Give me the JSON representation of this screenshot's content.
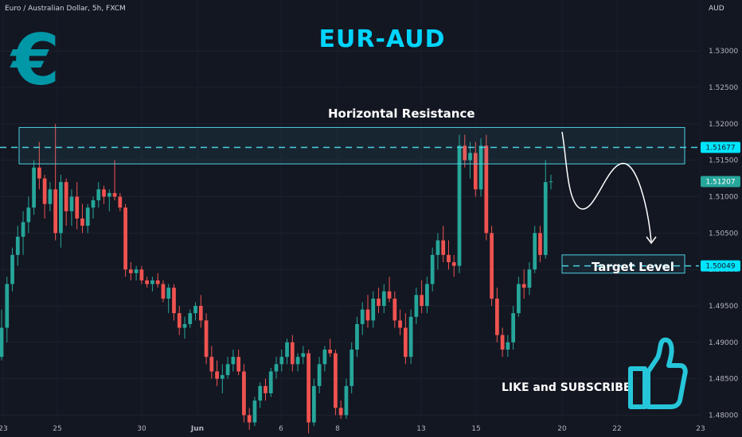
{
  "header": {
    "symbol_line": "Euro / Australian Dollar, 5h, FXCM",
    "currency": "AUD"
  },
  "annotations": {
    "title": "EUR-AUD",
    "euro_symbol": "€",
    "resistance_label": "Horizontal Resistance",
    "target_label": "Target Level",
    "cta": "LIKE and SUBSCRIBE"
  },
  "icons": {
    "currency_logo": "euro-icon",
    "like": "thumbs-up-icon"
  },
  "colors": {
    "background": "#131722",
    "up": "#26a69a",
    "down": "#ef5350",
    "zone": "#4dd0e1",
    "accent": "#00d4ff",
    "current_price": "#26a69a"
  },
  "chart_data": {
    "type": "candlestick",
    "y_axis_side": "right",
    "ylim": [
      1.477,
      1.537
    ],
    "y_ticks": [
      "1.53000",
      "1.52500",
      "1.52000",
      "1.51500",
      "1.51000",
      "1.50500",
      "1.50000",
      "1.49500",
      "1.49000",
      "1.48500",
      "1.48000"
    ],
    "x_ticks": [
      "23",
      "25",
      "30",
      "Jun",
      "6",
      "8",
      "13",
      "15",
      "20",
      "22",
      "23"
    ],
    "price_labels": [
      {
        "text": "1.51677",
        "value": 1.51677,
        "kind": "resistance"
      },
      {
        "text": "1.51207",
        "value": 1.51207,
        "kind": "current"
      },
      {
        "text": "1.50049",
        "value": 1.50049,
        "kind": "target"
      }
    ],
    "zones": [
      {
        "name": "resistance",
        "top": 1.5195,
        "bottom": 1.5145,
        "level": 1.51677
      },
      {
        "name": "target",
        "top": 1.502,
        "bottom": 1.4995,
        "level": 1.50049
      }
    ],
    "projection": "curved path from resistance down to target level",
    "candles": [
      [
        1.488,
        1.4945,
        1.4875,
        1.492
      ],
      [
        1.492,
        1.499,
        1.49,
        1.498
      ],
      [
        1.498,
        1.503,
        1.497,
        1.502
      ],
      [
        1.502,
        1.506,
        1.5005,
        1.5045
      ],
      [
        1.5045,
        1.508,
        1.502,
        1.5065
      ],
      [
        1.5065,
        1.51,
        1.505,
        1.5085
      ],
      [
        1.5085,
        1.515,
        1.5075,
        1.514
      ],
      [
        1.514,
        1.5175,
        1.511,
        1.5125
      ],
      [
        1.5125,
        1.513,
        1.507,
        1.509
      ],
      [
        1.509,
        1.512,
        1.508,
        1.511
      ],
      [
        1.511,
        1.52,
        1.504,
        1.505
      ],
      [
        1.505,
        1.513,
        1.503,
        1.512
      ],
      [
        1.512,
        1.5125,
        1.506,
        1.508
      ],
      [
        1.508,
        1.511,
        1.506,
        1.51
      ],
      [
        1.51,
        1.512,
        1.5055,
        1.507
      ],
      [
        1.507,
        1.509,
        1.505,
        1.506
      ],
      [
        1.506,
        1.509,
        1.505,
        1.5085
      ],
      [
        1.5085,
        1.51,
        1.507,
        1.5095
      ],
      [
        1.5095,
        1.512,
        1.5085,
        1.511
      ],
      [
        1.511,
        1.5115,
        1.509,
        1.51
      ],
      [
        1.51,
        1.511,
        1.508,
        1.5105
      ],
      [
        1.5105,
        1.515,
        1.5095,
        1.51
      ],
      [
        1.51,
        1.5105,
        1.508,
        1.5085
      ],
      [
        1.5085,
        1.509,
        1.499,
        1.5
      ],
      [
        1.5,
        1.501,
        1.4985,
        1.4995
      ],
      [
        1.4995,
        1.5005,
        1.4985,
        1.5
      ],
      [
        1.5,
        1.5005,
        1.498,
        1.4985
      ],
      [
        1.4985,
        1.499,
        1.4975,
        1.498
      ],
      [
        1.498,
        1.499,
        1.497,
        1.4985
      ],
      [
        1.4985,
        1.4995,
        1.4975,
        1.498
      ],
      [
        1.498,
        1.4985,
        1.4955,
        1.496
      ],
      [
        1.496,
        1.498,
        1.494,
        1.4975
      ],
      [
        1.4975,
        1.498,
        1.493,
        1.494
      ],
      [
        1.494,
        1.495,
        1.491,
        1.492
      ],
      [
        1.492,
        1.4935,
        1.4905,
        1.4925
      ],
      [
        1.4925,
        1.4945,
        1.492,
        1.494
      ],
      [
        1.494,
        1.4955,
        1.493,
        1.495
      ],
      [
        1.495,
        1.4965,
        1.492,
        1.493
      ],
      [
        1.493,
        1.494,
        1.487,
        1.488
      ],
      [
        1.488,
        1.4895,
        1.485,
        1.486
      ],
      [
        1.486,
        1.4875,
        1.484,
        1.485
      ],
      [
        1.485,
        1.487,
        1.483,
        1.4855
      ],
      [
        1.4855,
        1.488,
        1.485,
        1.487
      ],
      [
        1.487,
        1.489,
        1.486,
        1.488
      ],
      [
        1.488,
        1.489,
        1.4855,
        1.486
      ],
      [
        1.486,
        1.487,
        1.479,
        1.48
      ],
      [
        1.48,
        1.481,
        1.478,
        1.479
      ],
      [
        1.479,
        1.4825,
        1.4785,
        1.482
      ],
      [
        1.482,
        1.4845,
        1.481,
        1.484
      ],
      [
        1.484,
        1.485,
        1.482,
        1.483
      ],
      [
        1.483,
        1.4865,
        1.4825,
        1.486
      ],
      [
        1.486,
        1.488,
        1.485,
        1.487
      ],
      [
        1.487,
        1.489,
        1.486,
        1.488
      ],
      [
        1.488,
        1.4905,
        1.487,
        1.49
      ],
      [
        1.49,
        1.491,
        1.486,
        1.487
      ],
      [
        1.487,
        1.4885,
        1.486,
        1.488
      ],
      [
        1.488,
        1.4895,
        1.487,
        1.4885
      ],
      [
        1.4885,
        1.489,
        1.4775,
        1.479
      ],
      [
        1.479,
        1.485,
        1.4785,
        1.484
      ],
      [
        1.484,
        1.488,
        1.483,
        1.487
      ],
      [
        1.487,
        1.4895,
        1.486,
        1.489
      ],
      [
        1.489,
        1.4905,
        1.488,
        1.4885
      ],
      [
        1.4885,
        1.489,
        1.48,
        1.481
      ],
      [
        1.481,
        1.482,
        1.4795,
        1.48
      ],
      [
        1.48,
        1.485,
        1.4795,
        1.484
      ],
      [
        1.484,
        1.49,
        1.483,
        1.489
      ],
      [
        1.489,
        1.4935,
        1.488,
        1.4925
      ],
      [
        1.4925,
        1.4955,
        1.491,
        1.4945
      ],
      [
        1.4945,
        1.4965,
        1.492,
        1.493
      ],
      [
        1.493,
        1.497,
        1.492,
        1.496
      ],
      [
        1.496,
        1.4975,
        1.494,
        1.495
      ],
      [
        1.495,
        1.498,
        1.494,
        1.497
      ],
      [
        1.497,
        1.499,
        1.4955,
        1.496
      ],
      [
        1.496,
        1.497,
        1.492,
        1.493
      ],
      [
        1.493,
        1.4945,
        1.491,
        1.492
      ],
      [
        1.492,
        1.494,
        1.487,
        1.488
      ],
      [
        1.488,
        1.4945,
        1.487,
        1.4935
      ],
      [
        1.4935,
        1.4975,
        1.4925,
        1.4965
      ],
      [
        1.4965,
        1.4985,
        1.494,
        1.495
      ],
      [
        1.495,
        1.499,
        1.494,
        1.498
      ],
      [
        1.498,
        1.503,
        1.497,
        1.502
      ],
      [
        1.502,
        1.505,
        1.5,
        1.504
      ],
      [
        1.504,
        1.506,
        1.501,
        1.502
      ],
      [
        1.502,
        1.504,
        1.5,
        1.501
      ],
      [
        1.501,
        1.502,
        1.499,
        1.5005
      ],
      [
        1.5005,
        1.5185,
        1.4995,
        1.517
      ],
      [
        1.517,
        1.5185,
        1.514,
        1.515
      ],
      [
        1.515,
        1.5175,
        1.5125,
        1.516
      ],
      [
        1.516,
        1.5175,
        1.51,
        1.511
      ],
      [
        1.511,
        1.518,
        1.51,
        1.517
      ],
      [
        1.517,
        1.5185,
        1.504,
        1.505
      ],
      [
        1.505,
        1.506,
        1.495,
        1.496
      ],
      [
        1.496,
        1.4975,
        1.49,
        1.491
      ],
      [
        1.491,
        1.492,
        1.488,
        1.489
      ],
      [
        1.489,
        1.491,
        1.488,
        1.49
      ],
      [
        1.49,
        1.495,
        1.489,
        1.494
      ],
      [
        1.494,
        1.499,
        1.4935,
        1.498
      ],
      [
        1.498,
        1.5,
        1.496,
        1.4975
      ],
      [
        1.4975,
        1.501,
        1.4965,
        1.5
      ],
      [
        1.5,
        1.506,
        1.4995,
        1.505
      ],
      [
        1.505,
        1.506,
        1.501,
        1.502
      ],
      [
        1.502,
        1.515,
        1.5015,
        1.512
      ],
      [
        1.512,
        1.513,
        1.511,
        1.5121
      ]
    ]
  }
}
